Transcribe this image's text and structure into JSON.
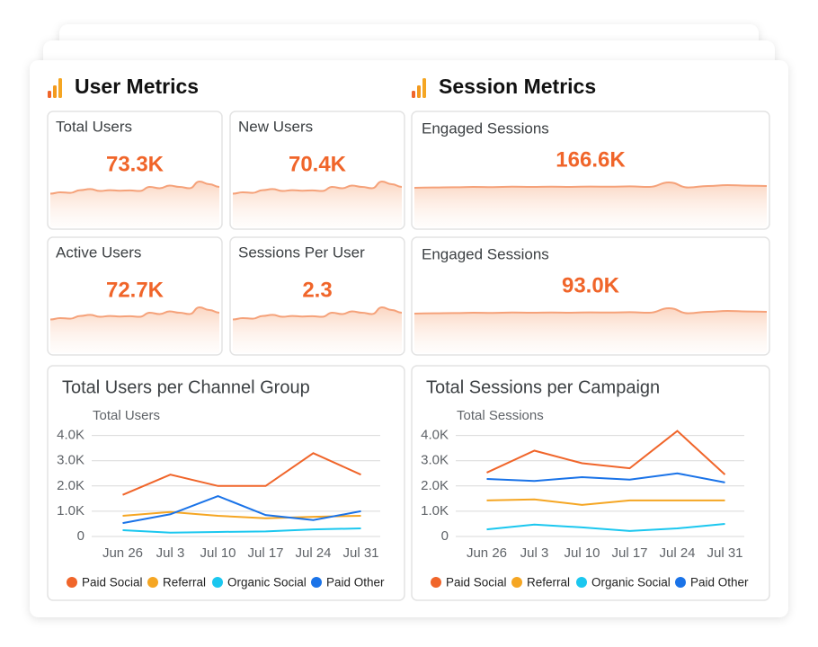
{
  "sections": [
    {
      "title": "User Metrics"
    },
    {
      "title": "Session Metrics"
    }
  ],
  "cards": [
    {
      "label": "Total Users",
      "value": "73.3K"
    },
    {
      "label": "New Users",
      "value": "70.4K"
    },
    {
      "label": "Active Users",
      "value": "72.7K"
    },
    {
      "label": "Sessions Per User",
      "value": "2.3"
    },
    {
      "label": "Engaged Sessions",
      "value": "166.6K"
    },
    {
      "label": "Engaged Sessions",
      "value": "93.0K"
    }
  ],
  "chart_data": [
    {
      "type": "line",
      "title": "Total Users per Channel Group",
      "y_label": "Total Users",
      "categories": [
        "Jun 26",
        "Jul 3",
        "Jul 10",
        "Jul 17",
        "Jul 24",
        "Jul 31"
      ],
      "ylim": [
        0,
        4200
      ],
      "yticks": [
        0,
        {
          "value": 1000,
          "label": "1.0K"
        },
        {
          "value": 2000,
          "label": "2.0K"
        },
        {
          "value": 3000,
          "label": "3.0K"
        },
        {
          "value": 4000,
          "label": "4.0K"
        }
      ],
      "grid": true,
      "series": [
        {
          "name": "Paid Social",
          "color": "#f0652a",
          "values": [
            1650,
            2450,
            2000,
            2000,
            3300,
            2450
          ]
        },
        {
          "name": "Referral",
          "color": "#f5a623",
          "values": [
            820,
            970,
            820,
            720,
            780,
            820
          ]
        },
        {
          "name": "Organic Social",
          "color": "#1bc7ef",
          "values": [
            250,
            150,
            180,
            200,
            280,
            320
          ]
        },
        {
          "name": "Paid Other",
          "color": "#1a73e8",
          "values": [
            530,
            880,
            1600,
            850,
            650,
            1000
          ]
        }
      ]
    },
    {
      "type": "line",
      "title": "Total Sessions per Campaign",
      "y_label": "Total Sessions",
      "categories": [
        "Jun 26",
        "Jul 3",
        "Jul 10",
        "Jul 17",
        "Jul 24",
        "Jul 31"
      ],
      "ylim": [
        0,
        4200
      ],
      "yticks": [
        0,
        {
          "value": 1000,
          "label": "1.0K"
        },
        {
          "value": 2000,
          "label": "2.0K"
        },
        {
          "value": 3000,
          "label": "3.0K"
        },
        {
          "value": 4000,
          "label": "4.0K"
        }
      ],
      "grid": true,
      "series": [
        {
          "name": "Paid Social",
          "color": "#f0652a",
          "values": [
            2530,
            3400,
            2900,
            2700,
            4180,
            2450
          ]
        },
        {
          "name": "Referral",
          "color": "#f5a623",
          "values": [
            1430,
            1470,
            1250,
            1430,
            1430,
            1430
          ]
        },
        {
          "name": "Organic Social",
          "color": "#1bc7ef",
          "values": [
            280,
            470,
            360,
            220,
            320,
            500
          ]
        },
        {
          "name": "Paid Other",
          "color": "#1a73e8",
          "values": [
            2280,
            2200,
            2350,
            2250,
            2500,
            2140
          ]
        }
      ]
    }
  ]
}
